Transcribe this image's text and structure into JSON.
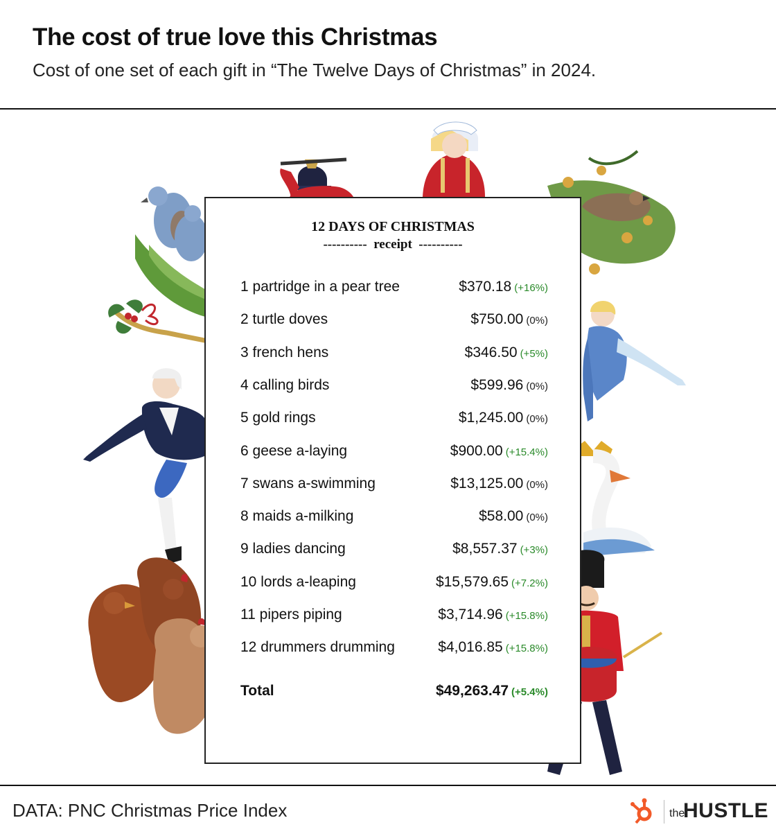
{
  "title": "The cost of true love this Christmas",
  "subtitle": "Cost of one set of each gift in “The Twelve Days of Christmas” in 2024.",
  "source": "DATA: PNC Christmas Price Index",
  "logo": {
    "the": "the",
    "brand": "HUSTLE",
    "icon": "hubspot-sprocket-icon"
  },
  "colors": {
    "up": "#2a8a2a",
    "flat": "#222222",
    "accent_logo": "#f25a29"
  },
  "chart_data": {
    "type": "table",
    "heading": "12 DAYS OF CHRISTMAS",
    "subheading": "----------  receipt  ----------",
    "rows": [
      {
        "item": "1 partridge in a pear tree",
        "price": "$370.18",
        "change": "(+16%)",
        "value": 370.18,
        "pct": 16
      },
      {
        "item": "2 turtle doves",
        "price": "$750.00",
        "change": "(0%)",
        "value": 750.0,
        "pct": 0
      },
      {
        "item": "3 french hens",
        "price": "$346.50",
        "change": "(+5%)",
        "value": 346.5,
        "pct": 5
      },
      {
        "item": "4 calling birds",
        "price": "$599.96",
        "change": "(0%)",
        "value": 599.96,
        "pct": 0
      },
      {
        "item": "5 gold rings",
        "price": "$1,245.00",
        "change": "(0%)",
        "value": 1245.0,
        "pct": 0
      },
      {
        "item": "6 geese a-laying",
        "price": "$900.00",
        "change": "(+15.4%)",
        "value": 900.0,
        "pct": 15.4
      },
      {
        "item": "7 swans a-swimming",
        "price": "$13,125.00",
        "change": "(0%)",
        "value": 13125.0,
        "pct": 0
      },
      {
        "item": "8 maids a-milking",
        "price": "$58.00",
        "change": "(0%)",
        "value": 58.0,
        "pct": 0
      },
      {
        "item": "9 ladies dancing",
        "price": "$8,557.37",
        "change": "(+3%)",
        "value": 8557.37,
        "pct": 3
      },
      {
        "item": "10 lords a-leaping",
        "price": "$15,579.65",
        "change": "(+7.2%)",
        "value": 15579.65,
        "pct": 7.2
      },
      {
        "item": "11 pipers piping",
        "price": "$3,714.96",
        "change": "(+15.8%)",
        "value": 3714.96,
        "pct": 15.8
      },
      {
        "item": "12 drummers drumming",
        "price": "$4,016.85",
        "change": "(+15.8%)",
        "value": 4016.85,
        "pct": 15.8
      }
    ],
    "total": {
      "item": "Total",
      "price": "$49,263.47",
      "change": "(+5.4%)",
      "value": 49263.47,
      "pct": 5.4
    }
  }
}
